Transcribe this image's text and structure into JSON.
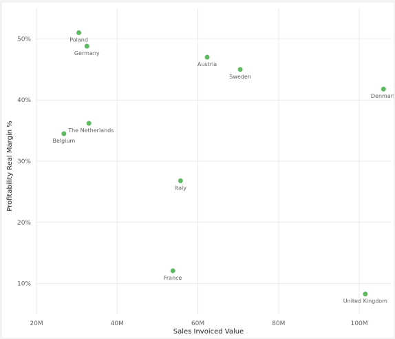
{
  "chart_data": {
    "type": "scatter",
    "xlabel": "Sales Invoiced Value",
    "ylabel": "Profitability Real Margin %",
    "xlim": [
      20,
      108
    ],
    "ylim": [
      5,
      55
    ],
    "x_ticks": [
      20,
      40,
      60,
      80,
      100
    ],
    "x_tick_labels": [
      "20M",
      "40M",
      "60M",
      "80M",
      "100M"
    ],
    "y_ticks": [
      10,
      20,
      30,
      40,
      50
    ],
    "y_tick_labels": [
      "10%",
      "20%",
      "30%",
      "40%",
      "50%"
    ],
    "grid": true,
    "color": "#5fb962",
    "points": [
      {
        "label": "Poland",
        "x": 30.5,
        "y": 51.0,
        "label_pos": "below"
      },
      {
        "label": "Germany",
        "x": 32.5,
        "y": 48.8,
        "label_pos": "below"
      },
      {
        "label": "Austria",
        "x": 62.3,
        "y": 47.0,
        "label_pos": "below"
      },
      {
        "label": "Sweden",
        "x": 70.5,
        "y": 45.0,
        "label_pos": "below"
      },
      {
        "label": "Denmark",
        "x": 106.0,
        "y": 41.8,
        "label_pos": "below"
      },
      {
        "label": "The Netherlands",
        "x": 33.0,
        "y": 36.2,
        "label_pos": "right"
      },
      {
        "label": "Belgium",
        "x": 26.8,
        "y": 34.5,
        "label_pos": "below"
      },
      {
        "label": "Italy",
        "x": 55.7,
        "y": 26.8,
        "label_pos": "below"
      },
      {
        "label": "France",
        "x": 53.8,
        "y": 12.1,
        "label_pos": "below"
      },
      {
        "label": "United Kingdom",
        "x": 101.5,
        "y": 8.3,
        "label_pos": "below"
      }
    ]
  }
}
